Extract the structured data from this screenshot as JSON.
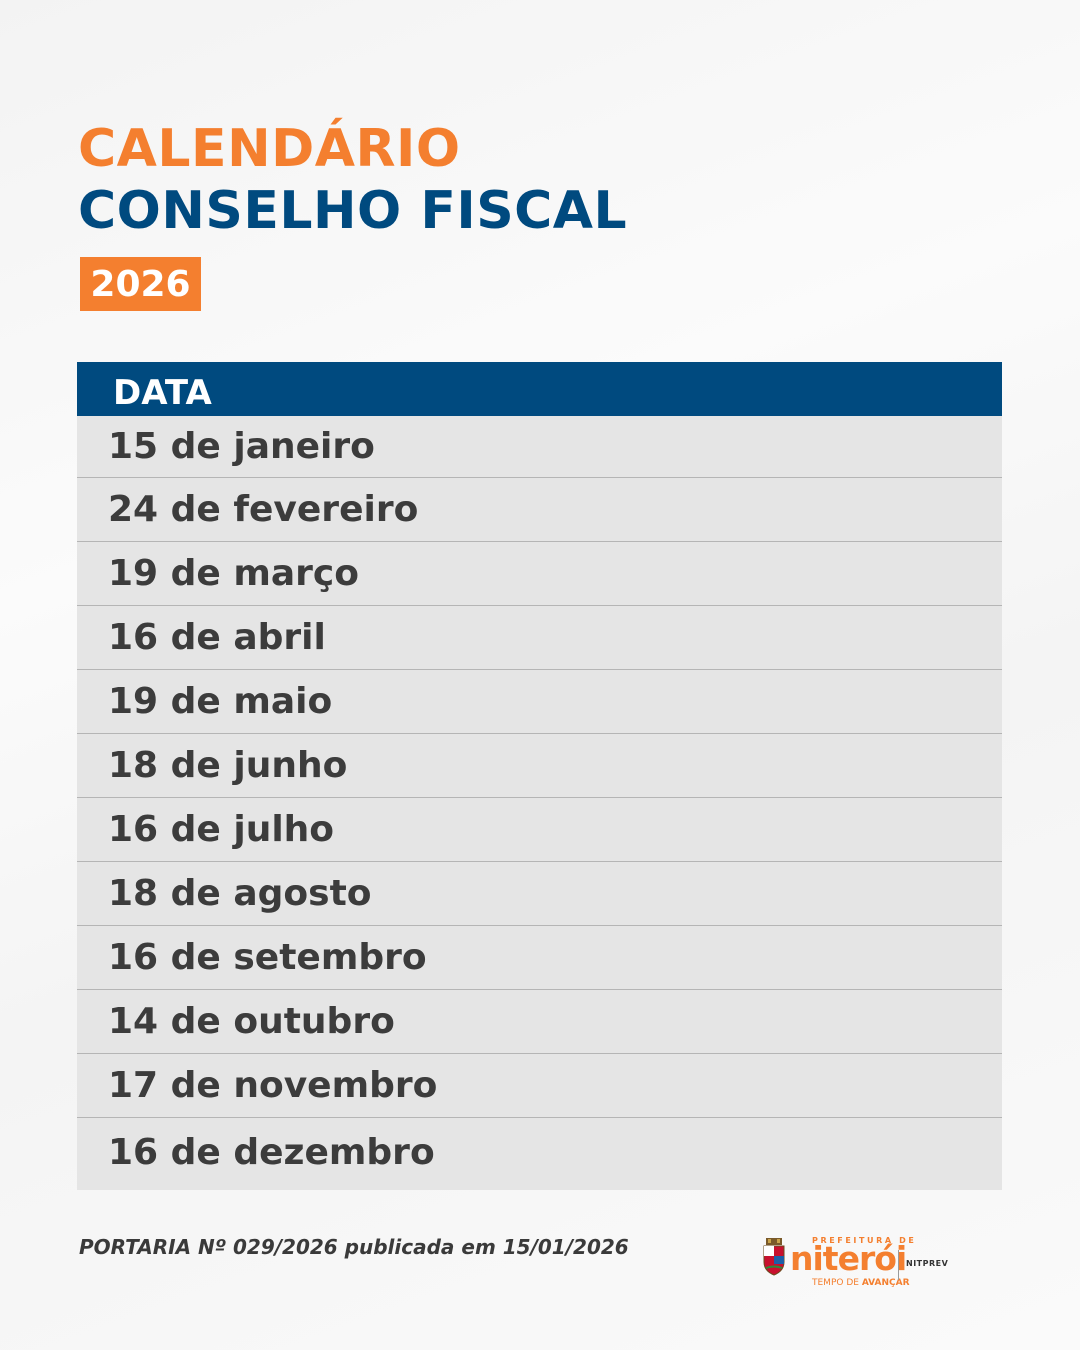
{
  "header": {
    "title_line1": "CALENDÁRIO",
    "title_line2": "CONSELHO FISCAL",
    "year": "2026"
  },
  "table": {
    "header": "DATA",
    "rows": [
      "15 de janeiro",
      "24 de fevereiro",
      "19 de março",
      "16 de abril",
      "19 de maio",
      "18 de junho",
      "16 de julho",
      "18 de agosto",
      "16 de setembro",
      "14 de outubro",
      "17 de novembro",
      "16 de dezembro"
    ]
  },
  "footer": {
    "note": "PORTARIA Nº 029/2026 publicada em 15/01/2026",
    "logo": {
      "prefeitura": "PREFEITURA DE",
      "city": "niterói",
      "tagline_regular": "TEMPO DE ",
      "tagline_bold": "AVANÇAR",
      "agency": "NITPREV"
    }
  },
  "colors": {
    "accent_orange": "#f47f2f",
    "brand_blue": "#004a7f",
    "row_background": "#e5e5e5"
  }
}
